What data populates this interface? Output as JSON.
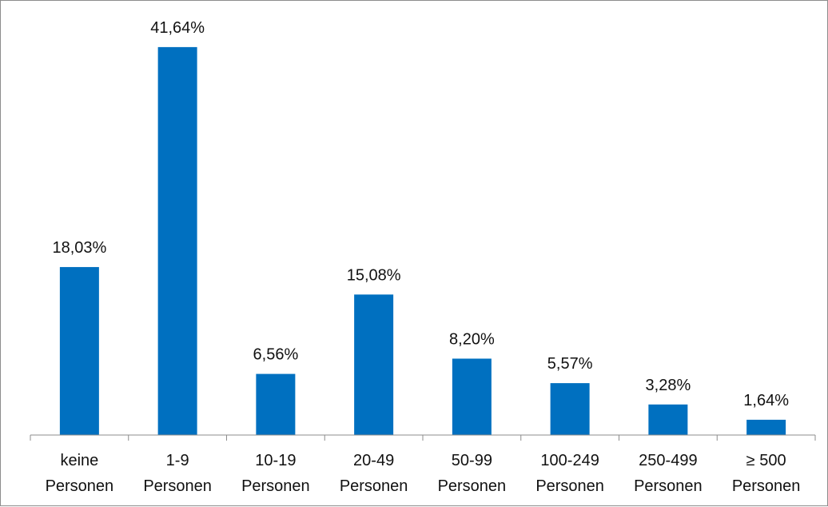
{
  "chart_data": {
    "type": "bar",
    "title": "",
    "xlabel": "",
    "ylabel": "",
    "categories": [
      [
        "keine",
        "Personen"
      ],
      [
        "1-9",
        "Personen"
      ],
      [
        "10-19",
        "Personen"
      ],
      [
        "20-49",
        "Personen"
      ],
      [
        "50-99",
        "Personen"
      ],
      [
        "100-249",
        "Personen"
      ],
      [
        "250-499",
        "Personen"
      ],
      [
        "≥ 500",
        "Personen"
      ]
    ],
    "values": [
      18.03,
      41.64,
      6.56,
      15.08,
      8.2,
      5.57,
      3.28,
      1.64
    ],
    "data_labels": [
      "18,03%",
      "41,64%",
      "6,56%",
      "15,08%",
      "8,20%",
      "5,57%",
      "3,28%",
      "1,64%"
    ],
    "ylim": [
      0,
      45
    ],
    "bar_color": "#0070C0",
    "axis_color": "#8c8c8c",
    "grid": false,
    "legend": "none"
  }
}
